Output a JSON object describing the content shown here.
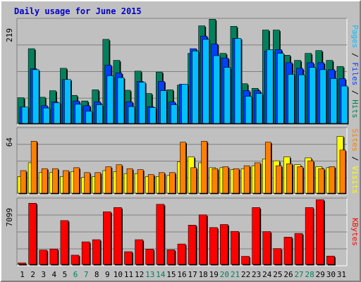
{
  "title": "Daily usage for June 2015",
  "colors": {
    "background": "#c0c0c0",
    "panel_background": "#c0c0c0",
    "grid": "#808080",
    "hits": "#00805c",
    "files": "#0040ff",
    "pages": "#00c0ff",
    "visits": "#ffff00",
    "sites": "#ff8000",
    "kbytes": "#ff0000",
    "title": "#0000cc",
    "day_weekday": "#000000",
    "day_weekend": "#00805c",
    "separator": "#000000"
  },
  "chart_data": [
    {
      "type": "bar",
      "name": "hits-files-pages",
      "title": "Daily usage for June 2015",
      "ylabel_parts": [
        "Pages",
        "Files",
        "Hits"
      ],
      "ymax_label": "219",
      "ylim": [
        0,
        219
      ],
      "grid": true,
      "categories": [
        "1",
        "2",
        "3",
        "4",
        "5",
        "6",
        "7",
        "8",
        "9",
        "10",
        "11",
        "12",
        "13",
        "14",
        "15",
        "16",
        "17",
        "18",
        "19",
        "20",
        "21",
        "22",
        "23",
        "24",
        "25",
        "26",
        "27",
        "28",
        "29",
        "30",
        "31"
      ],
      "series": [
        {
          "name": "Hits",
          "values": [
            55,
            160,
            56,
            70,
            118,
            60,
            48,
            72,
            180,
            135,
            71,
            112,
            64,
            110,
            72,
            82,
            150,
            209,
            223,
            150,
            208,
            85,
            75,
            200,
            200,
            146,
            135,
            150,
            156,
            135,
            122
          ]
        },
        {
          "name": "Files",
          "values": [
            35,
            117,
            38,
            46,
            94,
            48,
            38,
            46,
            125,
            108,
            46,
            90,
            36,
            90,
            46,
            84,
            160,
            187,
            170,
            140,
            182,
            70,
            70,
            155,
            158,
            130,
            118,
            130,
            130,
            115,
            96
          ]
        },
        {
          "name": "Pages",
          "values": [
            35,
            115,
            33,
            44,
            94,
            41,
            26,
            40,
            102,
            98,
            36,
            88,
            34,
            70,
            40,
            84,
            155,
            180,
            145,
            120,
            182,
            58,
            64,
            158,
            150,
            105,
            104,
            120,
            115,
            96,
            80
          ]
        }
      ]
    },
    {
      "type": "bar",
      "name": "visits-sites",
      "ylabel_parts": [
        "Sites",
        "Visits"
      ],
      "ymax_label": "64",
      "ylim": [
        0,
        64
      ],
      "grid": true,
      "categories": [
        "1",
        "2",
        "3",
        "4",
        "5",
        "6",
        "7",
        "8",
        "9",
        "10",
        "11",
        "12",
        "13",
        "14",
        "15",
        "16",
        "17",
        "18",
        "19",
        "20",
        "21",
        "22",
        "23",
        "24",
        "25",
        "26",
        "27",
        "28",
        "29",
        "30",
        "31"
      ],
      "series": [
        {
          "name": "Visits",
          "values": [
            17,
            31,
            21,
            21,
            17,
            22,
            16,
            17,
            23,
            22,
            20,
            20,
            17,
            17,
            18,
            32,
            37,
            31,
            26,
            26,
            24,
            25,
            28,
            35,
            33,
            37,
            29,
            36,
            27,
            26,
            58
          ]
        },
        {
          "name": "Sites",
          "values": [
            23,
            53,
            25,
            25,
            23,
            26,
            21,
            21,
            27,
            29,
            25,
            24,
            19,
            21,
            21,
            52,
            26,
            53,
            25,
            27,
            25,
            28,
            31,
            52,
            28,
            30,
            27,
            33,
            25,
            27,
            44
          ]
        }
      ]
    },
    {
      "type": "bar",
      "name": "kbytes",
      "ylabel_parts": [
        "KBytes"
      ],
      "ymax_label": "7099",
      "ylim": [
        0,
        7099
      ],
      "grid": true,
      "categories": [
        "1",
        "2",
        "3",
        "4",
        "5",
        "6",
        "7",
        "8",
        "9",
        "10",
        "11",
        "12",
        "13",
        "14",
        "15",
        "16",
        "17",
        "18",
        "19",
        "20",
        "21",
        "22",
        "23",
        "24",
        "25",
        "26",
        "27",
        "28",
        "29",
        "30",
        "31"
      ],
      "series": [
        {
          "name": "KBytes",
          "values": [
            160,
            6840,
            1600,
            1720,
            4900,
            1030,
            2520,
            2760,
            5880,
            6360,
            1420,
            2760,
            1700,
            6720,
            1640,
            2280,
            4390,
            5540,
            4120,
            4460,
            3690,
            900,
            6360,
            3670,
            1770,
            3050,
            3460,
            6360,
            7300,
            930,
            0
          ]
        }
      ]
    }
  ]
}
